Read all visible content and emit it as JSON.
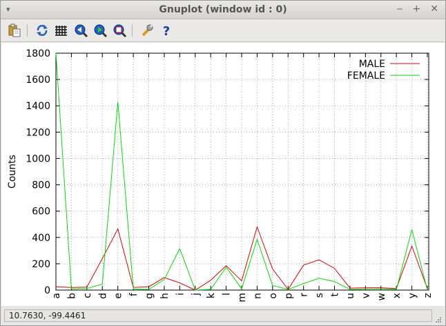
{
  "window": {
    "title": "Gnuplot (window id : 0)",
    "menu_glyph": "▾",
    "buttons": {
      "minimize": "‒",
      "maximize": "+",
      "close": "✕"
    }
  },
  "toolbar": {
    "items": [
      {
        "icon": "clipboard-copy-icon"
      },
      {
        "icon": "replot-icon"
      },
      {
        "icon": "grid-icon"
      },
      {
        "icon": "zoom-previous-icon"
      },
      {
        "icon": "zoom-next-icon"
      },
      {
        "icon": "autoscale-icon"
      },
      {
        "icon": "settings-wrench-icon"
      },
      {
        "icon": "help-icon"
      }
    ]
  },
  "status": {
    "coordinates": "10.7630, -99.4461"
  },
  "chart_data": {
    "type": "line",
    "ylabel": "Counts",
    "xlabel": "",
    "ylim": [
      0,
      1800
    ],
    "yticks": [
      0,
      200,
      400,
      600,
      800,
      1000,
      1200,
      1400,
      1600,
      1800
    ],
    "grid": true,
    "legend_position": "top-right",
    "categories": [
      "a",
      "b",
      "c",
      "d",
      "e",
      "f",
      "g",
      "h",
      "i",
      "j",
      "k",
      "l",
      "m",
      "n",
      "o",
      "p",
      "r",
      "s",
      "t",
      "u",
      "v",
      "w",
      "x",
      "y",
      "z"
    ],
    "series": [
      {
        "name": "MALE",
        "color": "#e00000",
        "values": [
          25,
          20,
          22,
          240,
          465,
          20,
          25,
          95,
          55,
          0,
          75,
          185,
          70,
          480,
          160,
          5,
          190,
          230,
          165,
          15,
          18,
          18,
          12,
          335,
          10
        ]
      },
      {
        "name": "FEMALE",
        "color": "#00dd00",
        "values": [
          1800,
          10,
          12,
          45,
          1430,
          8,
          5,
          80,
          315,
          0,
          5,
          175,
          10,
          385,
          35,
          5,
          50,
          90,
          65,
          5,
          8,
          10,
          5,
          460,
          0
        ]
      }
    ]
  }
}
